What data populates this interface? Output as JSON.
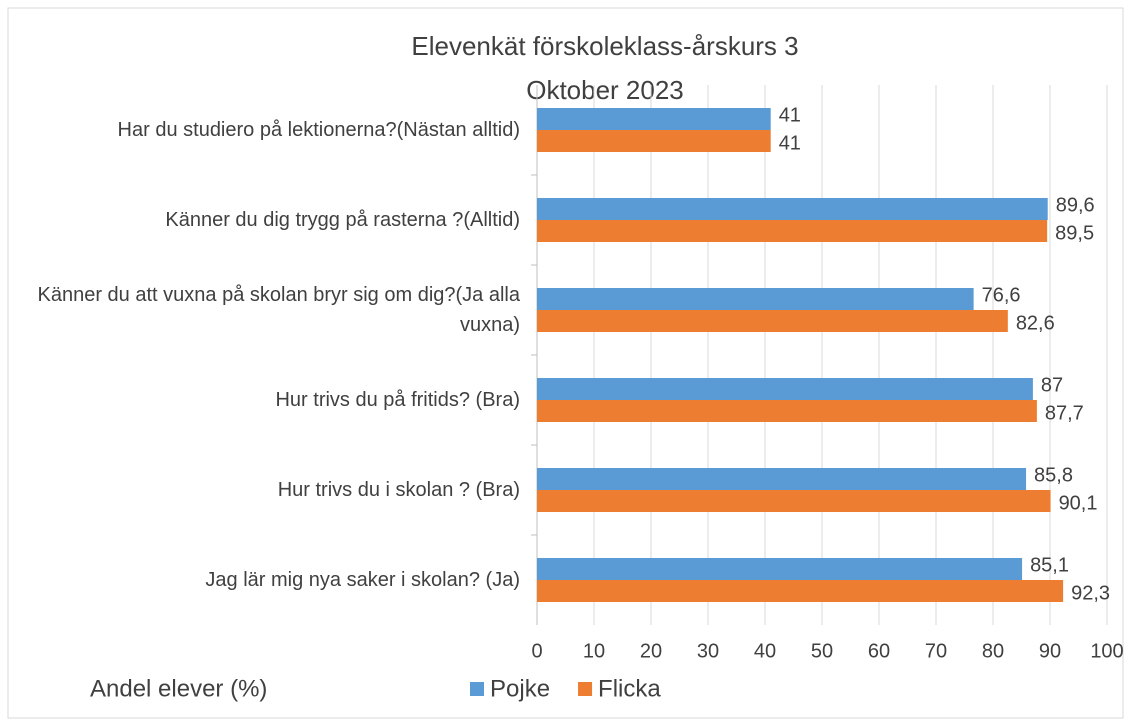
{
  "chart_data": {
    "type": "hbar",
    "title": "Elevenkät förskoleklass-årskurs 3",
    "subtitle": "Oktober 2023",
    "x_label": "Andel elever (%)",
    "categories": [
      "Har du studiero på lektionerna?(Nästan alltid)",
      "Känner du dig trygg på rasterna ?(Alltid)",
      "Känner du att vuxna på skolan bryr sig om dig?(Ja alla vuxna)",
      "Hur trivs du på fritids? (Bra)",
      "Hur trivs du i skolan ? (Bra)",
      "Jag lär mig nya saker i skolan? (Ja)"
    ],
    "series": [
      {
        "name": "Pojke",
        "color": "#5b9bd5",
        "values": [
          41,
          89.6,
          76.6,
          87,
          85.8,
          85.1
        ],
        "value_labels": [
          "41",
          "89,6",
          "76,6",
          "87",
          "85,8",
          "85,1"
        ]
      },
      {
        "name": "Flicka",
        "color": "#ed7d31",
        "values": [
          41,
          89.5,
          82.6,
          87.7,
          90.1,
          92.3
        ],
        "value_labels": [
          "41",
          "89,5",
          "82,6",
          "87,7",
          "90,1",
          "92,3"
        ]
      }
    ],
    "xlim": [
      0,
      100
    ],
    "xticks": [
      0,
      10,
      20,
      30,
      40,
      50,
      60,
      70,
      80,
      90,
      100
    ],
    "grid": true
  }
}
